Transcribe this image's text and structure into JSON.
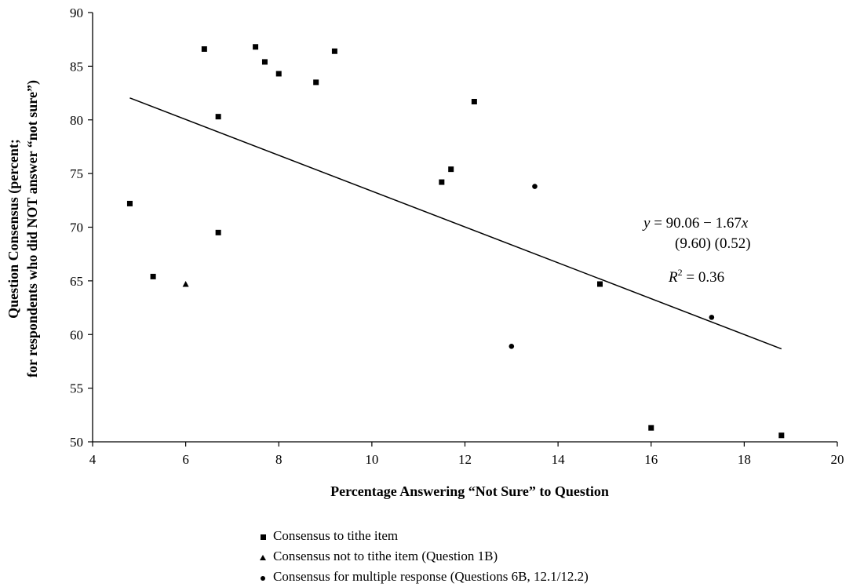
{
  "chart_data": {
    "type": "scatter",
    "xlabel": "Percentage Answering “Not Sure” to Question",
    "ylabel_line1": "Question Consensus (percent;",
    "ylabel_line2": "for respondents who did NOT answer “not sure”)",
    "xlim": [
      4,
      20
    ],
    "ylim": [
      50,
      90
    ],
    "x_ticks": [
      4,
      6,
      8,
      10,
      12,
      14,
      16,
      18,
      20
    ],
    "y_ticks": [
      50,
      55,
      60,
      65,
      70,
      75,
      80,
      85,
      90
    ],
    "grid": false,
    "legend_position": "bottom",
    "series": [
      {
        "name": "Consensus to tithe item",
        "marker": "square",
        "points": [
          {
            "x": 4.8,
            "y": 72.2
          },
          {
            "x": 5.3,
            "y": 65.4
          },
          {
            "x": 6.4,
            "y": 86.6
          },
          {
            "x": 6.7,
            "y": 80.3
          },
          {
            "x": 6.7,
            "y": 69.5
          },
          {
            "x": 7.5,
            "y": 86.8
          },
          {
            "x": 7.7,
            "y": 85.4
          },
          {
            "x": 8.0,
            "y": 84.3
          },
          {
            "x": 8.8,
            "y": 83.5
          },
          {
            "x": 9.2,
            "y": 86.4
          },
          {
            "x": 11.5,
            "y": 74.2
          },
          {
            "x": 11.7,
            "y": 75.4
          },
          {
            "x": 12.2,
            "y": 81.7
          },
          {
            "x": 14.9,
            "y": 64.7
          },
          {
            "x": 16.0,
            "y": 51.3
          },
          {
            "x": 18.8,
            "y": 50.6
          }
        ]
      },
      {
        "name": "Consensus not to tithe item (Question 1B)",
        "marker": "triangle",
        "points": [
          {
            "x": 6.0,
            "y": 64.7
          }
        ]
      },
      {
        "name": "Consensus for multiple response (Questions 6B, 12.1/12.2)",
        "marker": "circle",
        "points": [
          {
            "x": 13.0,
            "y": 58.9
          },
          {
            "x": 13.5,
            "y": 73.8
          },
          {
            "x": 17.3,
            "y": 61.6
          }
        ]
      }
    ],
    "trendline": {
      "intercept": 90.06,
      "slope": -1.67,
      "x_range": [
        4.8,
        18.8
      ]
    },
    "annotation": {
      "equation": "y = 90.06 − 1.67x",
      "std_errors": "(9.60)   (0.52)",
      "r_squared": "R² = 0.36"
    }
  }
}
